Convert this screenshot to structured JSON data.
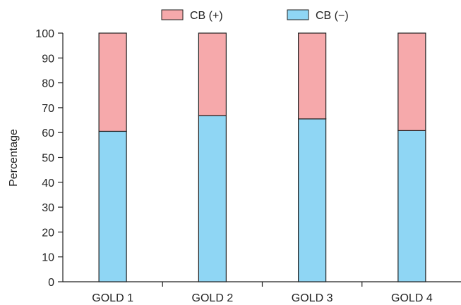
{
  "chart_data": {
    "type": "bar",
    "stacked": true,
    "categories": [
      "GOLD 1",
      "GOLD 2",
      "GOLD 3",
      "GOLD 4"
    ],
    "series": [
      {
        "name": "CB (−)",
        "color": "#8fd6f4",
        "values": [
          60.5,
          66.8,
          65.5,
          60.8
        ]
      },
      {
        "name": "CB (+)",
        "color": "#f6a9ab",
        "values": [
          39.5,
          33.2,
          34.5,
          39.2
        ]
      }
    ],
    "legend": {
      "placement": "top",
      "order": [
        "CB (+)",
        "CB (−)"
      ]
    },
    "title": "",
    "xlabel": "",
    "ylabel": "Percentage",
    "ylim": [
      0,
      100
    ],
    "yticks": [
      0,
      10,
      20,
      30,
      40,
      50,
      60,
      70,
      80,
      90,
      100
    ],
    "grid": false
  }
}
